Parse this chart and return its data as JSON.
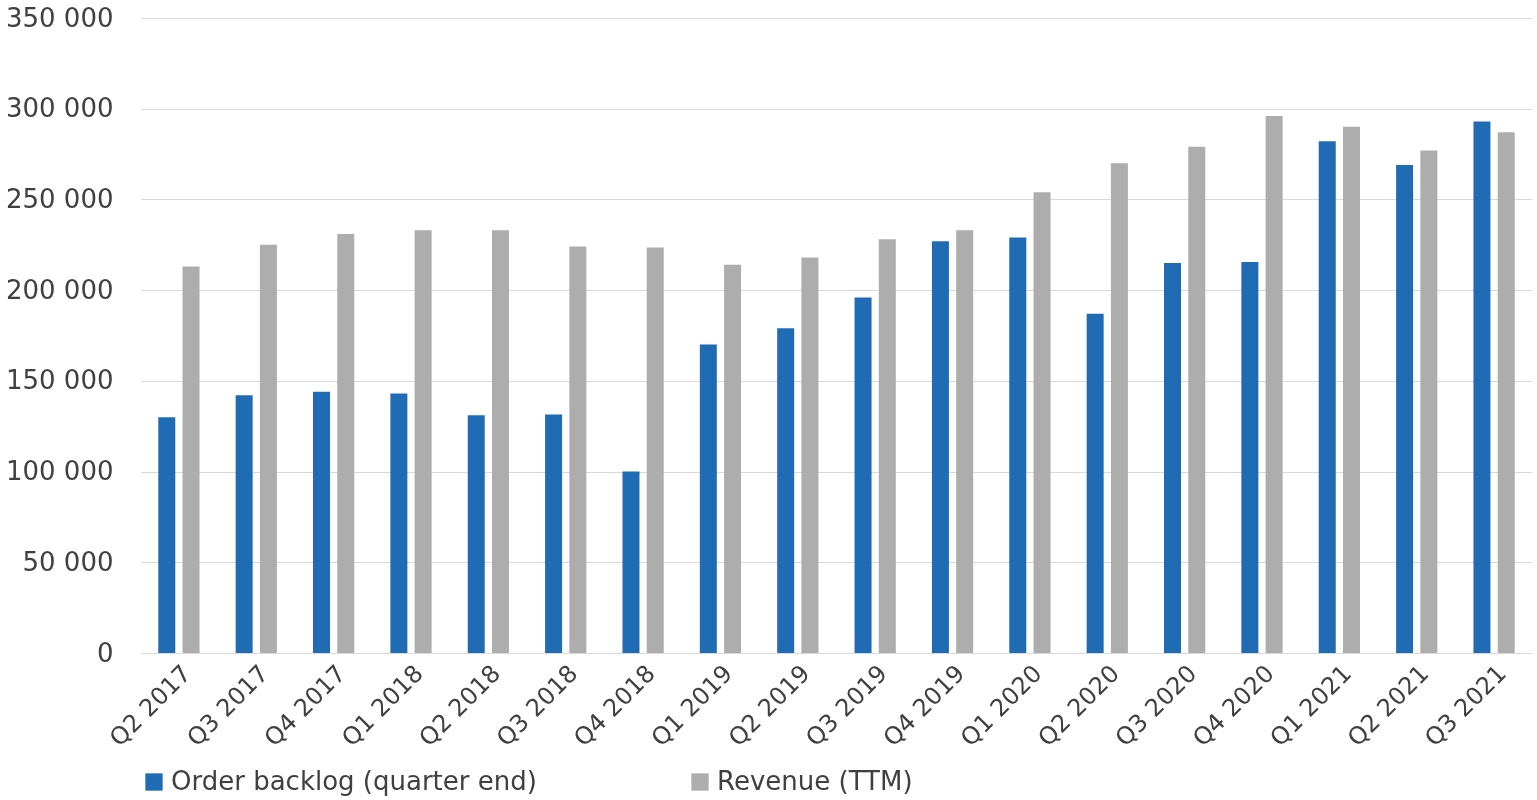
{
  "chart_data": {
    "type": "bar",
    "categories": [
      "Q2 2017",
      "Q3 2017",
      "Q4 2017",
      "Q1 2018",
      "Q2 2018",
      "Q3 2018",
      "Q4 2018",
      "Q1 2019",
      "Q2 2019",
      "Q3 2019",
      "Q4 2019",
      "Q1 2020",
      "Q2 2020",
      "Q3 2020",
      "Q4 2020",
      "Q1 2021",
      "Q2 2021",
      "Q3 2021"
    ],
    "series": [
      {
        "name": "Order backlog (quarter end)",
        "color": "#1f6cb4",
        "values": [
          130000,
          142000,
          144000,
          143000,
          131000,
          131500,
          100000,
          170000,
          179000,
          196000,
          227000,
          229000,
          187000,
          215000,
          215500,
          282000,
          269000,
          293000
        ]
      },
      {
        "name": "Revenue (TTM)",
        "color": "#adadad",
        "values": [
          213000,
          225000,
          231000,
          233000,
          233000,
          224000,
          223500,
          214000,
          218000,
          228000,
          233000,
          254000,
          270000,
          279000,
          296000,
          290000,
          277000,
          287000
        ]
      }
    ],
    "ylim": [
      0,
      350000
    ],
    "yticks": [
      {
        "value": 0,
        "label": "0"
      },
      {
        "value": 50000,
        "label": "50 000"
      },
      {
        "value": 100000,
        "label": "100 000"
      },
      {
        "value": 150000,
        "label": "150 000"
      },
      {
        "value": 200000,
        "label": "200 000"
      },
      {
        "value": 250000,
        "label": "250 000"
      },
      {
        "value": 300000,
        "label": "300 000"
      },
      {
        "value": 350000,
        "label": "350 000"
      }
    ],
    "grid": "y",
    "legend": "bottom"
  }
}
